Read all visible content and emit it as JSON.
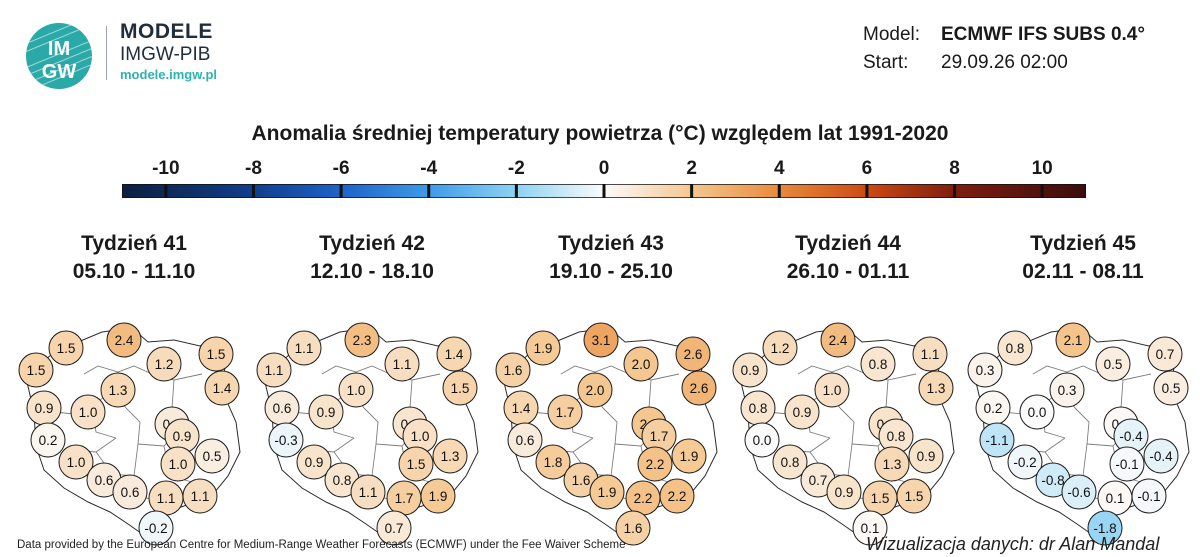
{
  "logo": {
    "name": "MODELE",
    "org": "IMGW-PIB",
    "url": "modele.imgw.pl",
    "mark_top": "IM",
    "mark_bottom": "GW"
  },
  "meta": {
    "model_label": "Model:",
    "model_value": "ECMWF IFS SUBS 0.4°",
    "start_label": "Start:",
    "start_value": "29.09.26 02:00"
  },
  "title": "Anomalia średniej temperatury powietrza (°C) względem lat 1991-2020",
  "colorbar": {
    "ticks": [
      "-10",
      "-8",
      "-6",
      "-4",
      "-2",
      "0",
      "2",
      "4",
      "6",
      "8",
      "10"
    ],
    "min": -11,
    "max": 11,
    "stops": [
      {
        "v": -11,
        "c": "#0d1f3f"
      },
      {
        "v": -8,
        "c": "#0f3f8c"
      },
      {
        "v": -6,
        "c": "#1e63c8"
      },
      {
        "v": -4,
        "c": "#3e9be8"
      },
      {
        "v": -2,
        "c": "#8ed2f2"
      },
      {
        "v": 0,
        "c": "#fbfbfb"
      },
      {
        "v": 2,
        "c": "#f5c790"
      },
      {
        "v": 4,
        "c": "#e88a3c"
      },
      {
        "v": 6,
        "c": "#cc4a14"
      },
      {
        "v": 8,
        "c": "#7e1d0e"
      },
      {
        "v": 11,
        "c": "#3a0d0d"
      }
    ]
  },
  "regions": [
    "pomorskie-w",
    "pomorskie",
    "pomorskie-c",
    "warminsko-mazurskie",
    "podlaskie-n",
    "zachodniopomorskie",
    "kujawsko-pomorskie",
    "podlaskie",
    "lubuskie-n",
    "wielkopolskie",
    "mazowieckie",
    "lubuskie",
    "lodzkie",
    "lubelskie",
    "dolnoslaskie",
    "opolskie",
    "swietokrzyskie",
    "lubelskie-s",
    "slaskie",
    "malopolskie",
    "podkarpackie",
    "tatry"
  ],
  "panels": [
    {
      "week": "Tydzień 41",
      "dates": "05.10 - 11.10",
      "values": [
        "1.5",
        "1.5",
        "2.4",
        "1.2",
        "1.5",
        "1.3",
        "1.4",
        "0.9",
        "1.0",
        "0.2",
        "0.6",
        "0.9",
        "1.0",
        "1.0",
        "0.5",
        "0.6",
        "0.6",
        "1.1",
        "1.1",
        "-0.2"
      ],
      "nums": [
        1.5,
        1.5,
        2.4,
        1.2,
        1.5,
        1.3,
        1.4,
        0.9,
        1.0,
        0.2,
        0.6,
        0.9,
        1.0,
        1.0,
        0.5,
        0.6,
        0.6,
        1.1,
        1.1,
        -0.2
      ]
    },
    {
      "week": "Tydzień 42",
      "dates": "12.10 - 18.10",
      "values": [
        "1.1",
        "1.1",
        "2.3",
        "1.1",
        "1.4",
        "1.0",
        "1.5",
        "0.6",
        "0.9",
        "-0.3",
        "0.8",
        "1.0",
        "0.9",
        "1.5",
        "1.3",
        "0.8",
        "1.1",
        "1.7",
        "1.9",
        "0.7"
      ],
      "nums": [
        1.1,
        1.1,
        2.3,
        1.1,
        1.4,
        1.0,
        1.5,
        0.6,
        0.9,
        -0.3,
        0.8,
        1.0,
        0.9,
        1.5,
        1.3,
        0.8,
        1.1,
        1.7,
        1.9,
        0.7
      ]
    },
    {
      "week": "Tydzień 43",
      "dates": "19.10 - 25.10",
      "values": [
        "1.9",
        "1.6",
        "3.1",
        "2.0",
        "2.6",
        "2.0",
        "2.6",
        "1.4",
        "1.7",
        "0.6",
        "2.0",
        "1.7",
        "1.8",
        "2.2",
        "1.9",
        "1.6",
        "1.9",
        "2.2",
        "2.2",
        "1.6"
      ],
      "nums": [
        1.9,
        1.6,
        3.1,
        2.0,
        2.6,
        2.0,
        2.6,
        1.4,
        1.7,
        0.6,
        2.0,
        1.7,
        1.8,
        2.2,
        1.9,
        1.6,
        1.9,
        2.2,
        2.2,
        1.6
      ]
    },
    {
      "week": "Tydzień 44",
      "dates": "26.10 - 01.11",
      "values": [
        "1.2",
        "0.9",
        "2.4",
        "0.8",
        "1.1",
        "1.0",
        "1.3",
        "0.8",
        "0.9",
        "0.0",
        "0.9",
        "0.8",
        "0.8",
        "1.3",
        "0.9",
        "0.7",
        "0.9",
        "1.5",
        "1.5",
        "0.1"
      ],
      "nums": [
        1.2,
        0.9,
        2.4,
        0.8,
        1.1,
        1.0,
        1.3,
        0.8,
        0.9,
        0.0,
        0.9,
        0.8,
        0.8,
        1.3,
        0.9,
        0.7,
        0.9,
        1.5,
        1.5,
        0.1
      ]
    },
    {
      "week": "Tydzień 45",
      "dates": "02.11 - 08.11",
      "values": [
        "0.8",
        "0.3",
        "2.1",
        "0.5",
        "0.7",
        "0.3",
        "0.5",
        "0.2",
        "0.0",
        "-1.1",
        "0.1",
        "-0.4",
        "-0.2",
        "-0.1",
        "-0.4",
        "-0.8",
        "-0.6",
        "0.1",
        "-0.1",
        "-1.8"
      ],
      "nums": [
        0.8,
        0.3,
        2.1,
        0.5,
        0.7,
        0.3,
        0.5,
        0.2,
        0.0,
        -1.1,
        0.1,
        -0.4,
        -0.2,
        -0.1,
        -0.4,
        -0.8,
        -0.6,
        0.1,
        -0.1,
        -1.8
      ]
    }
  ],
  "footer": {
    "credit": "Data provided by the European Centre for Medium-Range Weather Forecasts (ECMWF) under the Fee Waiver Scheme",
    "author": "Wizualizacja danych: dr Alan Mandal"
  }
}
